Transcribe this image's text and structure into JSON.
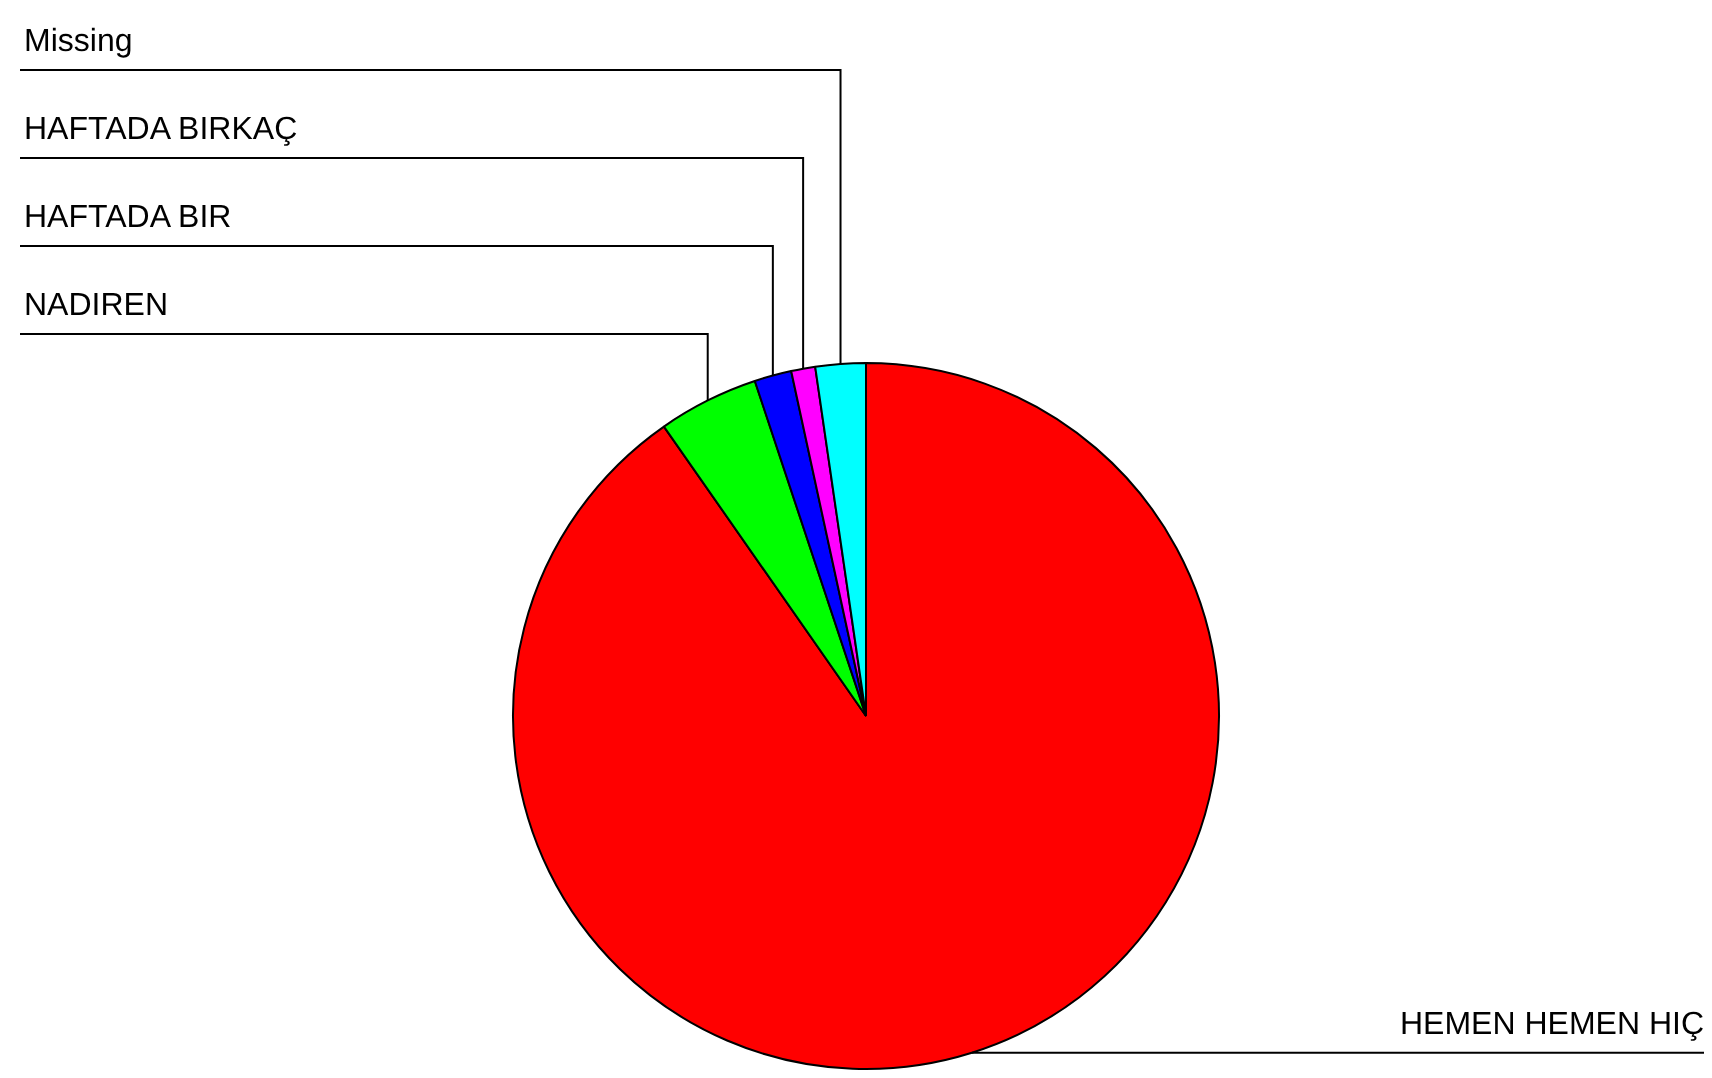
{
  "chart_data": {
    "type": "pie",
    "categories": [
      "HEMEN HEMEN HIÇ",
      "NADIREN",
      "HAFTADA BIR",
      "HAFTADA BIRKAÇ",
      "Missing"
    ],
    "values": [
      90.3,
      4.6,
      1.7,
      1.1,
      2.3
    ],
    "colors": [
      "#ff0000",
      "#00ff00",
      "#0000ff",
      "#ff00ff",
      "#00ffff"
    ],
    "legend": false
  }
}
